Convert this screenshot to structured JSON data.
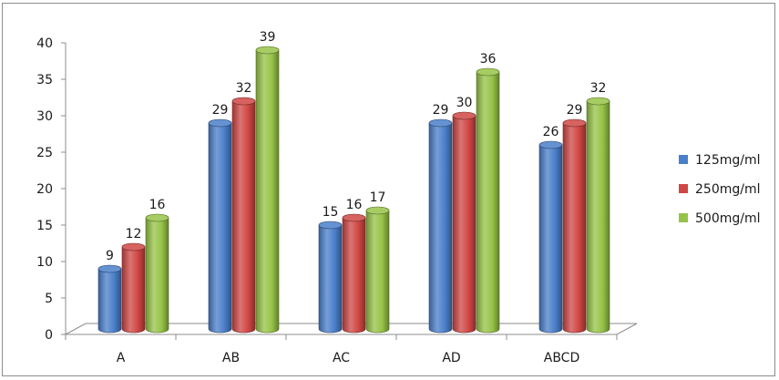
{
  "chart_data": {
    "type": "bar",
    "title": "",
    "xlabel": "",
    "ylabel": "",
    "ylim": [
      0,
      40
    ],
    "ytick_step": 5,
    "grid": false,
    "legend_position": "right",
    "categories": [
      "A",
      "AB",
      "AC",
      "AD",
      "ABCD"
    ],
    "series": [
      {
        "name": "125mg/ml",
        "color": "#4a7fc9",
        "values": [
          9,
          29,
          15,
          29,
          26
        ]
      },
      {
        "name": "250mg/ml",
        "color": "#cf4744",
        "values": [
          12,
          32,
          16,
          30,
          29
        ]
      },
      {
        "name": "500mg/ml",
        "color": "#96c347",
        "values": [
          16,
          39,
          17,
          36,
          32
        ]
      }
    ]
  }
}
